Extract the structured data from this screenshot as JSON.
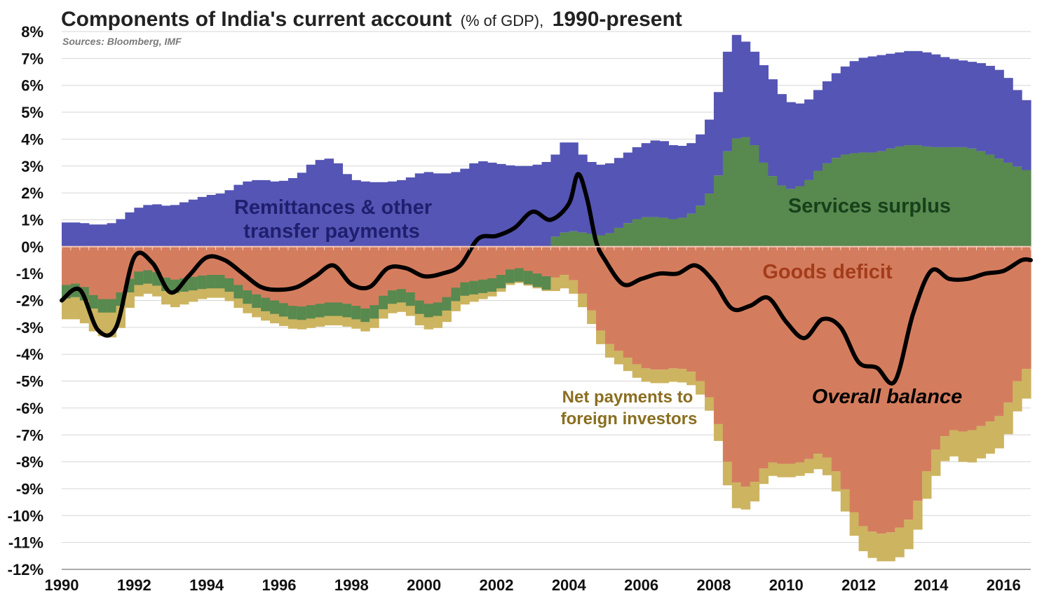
{
  "chart_data": {
    "type": "area",
    "title": "Components of India's current account",
    "title_unit": "(% of GDP),",
    "title_period": "1990-present",
    "source": "Sources: Bloomberg, IMF",
    "ylim": [
      -12,
      8
    ],
    "ylabels": [
      "8%",
      "7%",
      "6%",
      "5%",
      "4%",
      "3%",
      "2%",
      "1%",
      "0%",
      "-1%",
      "-2%",
      "-3%",
      "-4%",
      "-5%",
      "-6%",
      "-7%",
      "-8%",
      "-9%",
      "-10%",
      "-11%",
      "-12%"
    ],
    "xlim": [
      1990,
      2016.75
    ],
    "xlabels": [
      "1990",
      "1992",
      "1994",
      "1996",
      "1998",
      "2000",
      "2002",
      "2004",
      "2006",
      "2008",
      "2010",
      "2012",
      "2014",
      "2016"
    ],
    "grid": true,
    "colors": {
      "remittances": "#5555b5",
      "services": "#58894f",
      "goods": "#d47d5e",
      "investors": "#cdb460",
      "balance": "#000000"
    },
    "annotations": {
      "remittances_line1": "Remittances & other",
      "remittances_line2": "transfer payments",
      "services": "Services surplus",
      "goods": "Goods deficit",
      "investors_line1": "Net payments to",
      "investors_line2": "foreign investors",
      "balance": "Overall balance"
    },
    "series": [
      {
        "name": "Remittances & other transfer payments",
        "values": [
          [
            1990,
            0.9
          ],
          [
            1990.5,
            0.9
          ],
          [
            1991,
            0.8
          ],
          [
            1991.5,
            0.9
          ],
          [
            1992,
            1.4
          ],
          [
            1992.5,
            1.6
          ],
          [
            1993,
            1.5
          ],
          [
            1993.5,
            1.7
          ],
          [
            1994,
            1.9
          ],
          [
            1994.5,
            2.0
          ],
          [
            1995,
            2.4
          ],
          [
            1995.5,
            2.5
          ],
          [
            1996,
            2.4
          ],
          [
            1996.5,
            2.6
          ],
          [
            1997,
            3.2
          ],
          [
            1997.5,
            3.3
          ],
          [
            1998,
            2.5
          ],
          [
            1998.5,
            2.4
          ],
          [
            1999,
            2.4
          ],
          [
            1999.5,
            2.5
          ],
          [
            2000,
            2.8
          ],
          [
            2000.5,
            2.7
          ],
          [
            2001,
            2.8
          ],
          [
            2001.5,
            3.2
          ],
          [
            2002,
            3.1
          ],
          [
            2002.5,
            3.0
          ],
          [
            2003,
            3.0
          ],
          [
            2003.5,
            3.2
          ],
          [
            2004,
            4.1
          ],
          [
            2004.5,
            3.2
          ],
          [
            2005,
            3.0
          ],
          [
            2005.5,
            3.4
          ],
          [
            2006,
            3.8
          ],
          [
            2006.5,
            4.0
          ],
          [
            2007,
            3.7
          ],
          [
            2007.5,
            3.9
          ],
          [
            2008,
            5.0
          ],
          [
            2008.5,
            8.0
          ],
          [
            2009,
            7.5
          ],
          [
            2009.5,
            6.5
          ],
          [
            2010,
            5.4
          ],
          [
            2010.5,
            5.3
          ],
          [
            2011,
            6.0
          ],
          [
            2011.5,
            6.6
          ],
          [
            2012,
            7.0
          ],
          [
            2012.5,
            7.1
          ],
          [
            2013,
            7.2
          ],
          [
            2013.5,
            7.3
          ],
          [
            2014,
            7.2
          ],
          [
            2014.5,
            7.0
          ],
          [
            2015,
            6.9
          ],
          [
            2015.5,
            6.8
          ],
          [
            2016,
            6.5
          ],
          [
            2016.5,
            5.6
          ],
          [
            2016.75,
            5.3
          ]
        ]
      },
      {
        "name": "Services surplus",
        "values": [
          [
            2003.5,
            0.3
          ],
          [
            2004,
            0.6
          ],
          [
            2004.5,
            0.5
          ],
          [
            2005,
            0.4
          ],
          [
            2005.5,
            0.8
          ],
          [
            2006,
            1.1
          ],
          [
            2006.5,
            1.1
          ],
          [
            2007,
            1.0
          ],
          [
            2007.5,
            1.3
          ],
          [
            2008,
            2.2
          ],
          [
            2008.5,
            4.0
          ],
          [
            2009,
            4.1
          ],
          [
            2009.5,
            2.8
          ],
          [
            2010,
            2.1
          ],
          [
            2010.5,
            2.3
          ],
          [
            2011,
            3.0
          ],
          [
            2011.5,
            3.4
          ],
          [
            2012,
            3.5
          ],
          [
            2012.5,
            3.5
          ],
          [
            2013,
            3.7
          ],
          [
            2013.5,
            3.8
          ],
          [
            2014,
            3.7
          ],
          [
            2014.5,
            3.7
          ],
          [
            2015,
            3.7
          ],
          [
            2015.5,
            3.5
          ],
          [
            2016,
            3.2
          ],
          [
            2016.5,
            2.9
          ],
          [
            2016.75,
            2.8
          ]
        ]
      },
      {
        "name": "Goods deficit",
        "values": [
          [
            1990,
            -1.5
          ],
          [
            1990.5,
            -1.4
          ],
          [
            1991,
            -2.0
          ],
          [
            1991.5,
            -2.0
          ],
          [
            1992,
            -1.0
          ],
          [
            1992.5,
            -0.9
          ],
          [
            1993,
            -1.3
          ],
          [
            1993.5,
            -1.2
          ],
          [
            1994,
            -1.1
          ],
          [
            1994.5,
            -1.1
          ],
          [
            1995,
            -1.6
          ],
          [
            1995.5,
            -1.9
          ],
          [
            1996,
            -2.1
          ],
          [
            1996.5,
            -2.3
          ],
          [
            1997,
            -2.2
          ],
          [
            1997.5,
            -2.1
          ],
          [
            1998,
            -2.2
          ],
          [
            1998.5,
            -2.4
          ],
          [
            1999,
            -1.7
          ],
          [
            1999.5,
            -1.6
          ],
          [
            2000,
            -2.2
          ],
          [
            2000.5,
            -2.1
          ],
          [
            2001,
            -1.4
          ],
          [
            2001.5,
            -1.3
          ],
          [
            2002,
            -1.2
          ],
          [
            2002.5,
            -0.8
          ],
          [
            2003,
            -1.0
          ],
          [
            2003.5,
            -1.2
          ],
          [
            2004,
            -1.0
          ],
          [
            2004.5,
            -2.0
          ],
          [
            2005,
            -3.5
          ],
          [
            2005.5,
            -4.0
          ],
          [
            2006,
            -4.5
          ],
          [
            2006.5,
            -4.6
          ],
          [
            2007,
            -4.5
          ],
          [
            2007.5,
            -4.7
          ],
          [
            2008,
            -5.9
          ],
          [
            2008.5,
            -8.7
          ],
          [
            2009,
            -9.0
          ],
          [
            2009.5,
            -8.0
          ],
          [
            2010,
            -8.1
          ],
          [
            2010.5,
            -8.0
          ],
          [
            2011,
            -7.6
          ],
          [
            2011.5,
            -8.6
          ],
          [
            2012,
            -10.3
          ],
          [
            2012.5,
            -10.7
          ],
          [
            2013,
            -10.6
          ],
          [
            2013.5,
            -10.0
          ],
          [
            2014,
            -7.8
          ],
          [
            2014.5,
            -6.8
          ],
          [
            2015,
            -6.9
          ],
          [
            2015.5,
            -6.6
          ],
          [
            2016,
            -6.2
          ],
          [
            2016.5,
            -4.6
          ],
          [
            2016.75,
            -4.5
          ]
        ]
      },
      {
        "name": "Net payments to foreign investors",
        "values": [
          [
            1990,
            -1.2
          ],
          [
            1990.5,
            -1.3
          ],
          [
            1991,
            -1.3
          ],
          [
            1991.5,
            -1.4
          ],
          [
            1992,
            -0.9
          ],
          [
            1992.5,
            -0.8
          ],
          [
            1993,
            -1.0
          ],
          [
            1993.5,
            -0.9
          ],
          [
            1994,
            -0.8
          ],
          [
            1994.5,
            -0.8
          ],
          [
            1995,
            -0.8
          ],
          [
            1995.5,
            -0.8
          ],
          [
            1996,
            -0.8
          ],
          [
            1996.5,
            -0.8
          ],
          [
            1997,
            -0.8
          ],
          [
            1997.5,
            -0.8
          ],
          [
            1998,
            -0.8
          ],
          [
            1998.5,
            -0.8
          ],
          [
            1999,
            -0.8
          ],
          [
            1999.5,
            -0.8
          ],
          [
            2000,
            -0.9
          ],
          [
            2000.5,
            -0.9
          ],
          [
            2001,
            -0.8
          ],
          [
            2001.5,
            -0.7
          ],
          [
            2002,
            -0.6
          ],
          [
            2002.5,
            -0.5
          ],
          [
            2003,
            -0.5
          ],
          [
            2003.5,
            -0.5
          ],
          [
            2004,
            -0.5
          ],
          [
            2004.5,
            -0.5
          ],
          [
            2005,
            -0.5
          ],
          [
            2005.5,
            -0.5
          ],
          [
            2006,
            -0.5
          ],
          [
            2006.5,
            -0.5
          ],
          [
            2007,
            -0.5
          ],
          [
            2007.5,
            -0.5
          ],
          [
            2008,
            -0.5
          ],
          [
            2008.5,
            -1.0
          ],
          [
            2009,
            -0.8
          ],
          [
            2009.5,
            -0.5
          ],
          [
            2010,
            -0.5
          ],
          [
            2010.5,
            -0.5
          ],
          [
            2011,
            -0.6
          ],
          [
            2011.5,
            -0.8
          ],
          [
            2012,
            -0.9
          ],
          [
            2012.5,
            -1.0
          ],
          [
            2013,
            -1.1
          ],
          [
            2013.5,
            -1.1
          ],
          [
            2014,
            -1.0
          ],
          [
            2014.5,
            -0.9
          ],
          [
            2015,
            -1.2
          ],
          [
            2015.5,
            -1.2
          ],
          [
            2016,
            -1.2
          ],
          [
            2016.5,
            -1.1
          ],
          [
            2016.75,
            -1.1
          ]
        ]
      },
      {
        "name": "Overall balance",
        "values": [
          [
            1990,
            -2.0
          ],
          [
            1990.5,
            -1.6
          ],
          [
            1991,
            -3.1
          ],
          [
            1991.5,
            -3.0
          ],
          [
            1992,
            -0.4
          ],
          [
            1992.5,
            -0.6
          ],
          [
            1993,
            -1.7
          ],
          [
            1993.5,
            -1.1
          ],
          [
            1994,
            -0.4
          ],
          [
            1994.5,
            -0.5
          ],
          [
            1995,
            -1.0
          ],
          [
            1995.5,
            -1.5
          ],
          [
            1996,
            -1.6
          ],
          [
            1996.5,
            -1.5
          ],
          [
            1997,
            -1.1
          ],
          [
            1997.5,
            -0.7
          ],
          [
            1998,
            -1.4
          ],
          [
            1998.5,
            -1.5
          ],
          [
            1999,
            -0.8
          ],
          [
            1999.5,
            -0.8
          ],
          [
            2000,
            -1.1
          ],
          [
            2000.5,
            -1.0
          ],
          [
            2001,
            -0.7
          ],
          [
            2001.5,
            0.3
          ],
          [
            2002,
            0.4
          ],
          [
            2002.5,
            0.7
          ],
          [
            2003,
            1.3
          ],
          [
            2003.5,
            1.0
          ],
          [
            2004,
            1.6
          ],
          [
            2004.25,
            2.7
          ],
          [
            2004.5,
            1.8
          ],
          [
            2004.75,
            0.2
          ],
          [
            2005,
            -0.5
          ],
          [
            2005.5,
            -1.4
          ],
          [
            2006,
            -1.2
          ],
          [
            2006.5,
            -1.0
          ],
          [
            2007,
            -1.0
          ],
          [
            2007.5,
            -0.7
          ],
          [
            2008,
            -1.3
          ],
          [
            2008.5,
            -2.3
          ],
          [
            2009,
            -2.2
          ],
          [
            2009.5,
            -1.9
          ],
          [
            2010,
            -2.8
          ],
          [
            2010.5,
            -3.4
          ],
          [
            2011,
            -2.7
          ],
          [
            2011.5,
            -3.0
          ],
          [
            2012,
            -4.3
          ],
          [
            2012.5,
            -4.5
          ],
          [
            2013,
            -5.0
          ],
          [
            2013.5,
            -2.5
          ],
          [
            2014,
            -0.9
          ],
          [
            2014.5,
            -1.2
          ],
          [
            2015,
            -1.2
          ],
          [
            2015.5,
            -1.0
          ],
          [
            2016,
            -0.9
          ],
          [
            2016.5,
            -0.5
          ],
          [
            2016.75,
            -0.5
          ]
        ]
      }
    ]
  }
}
